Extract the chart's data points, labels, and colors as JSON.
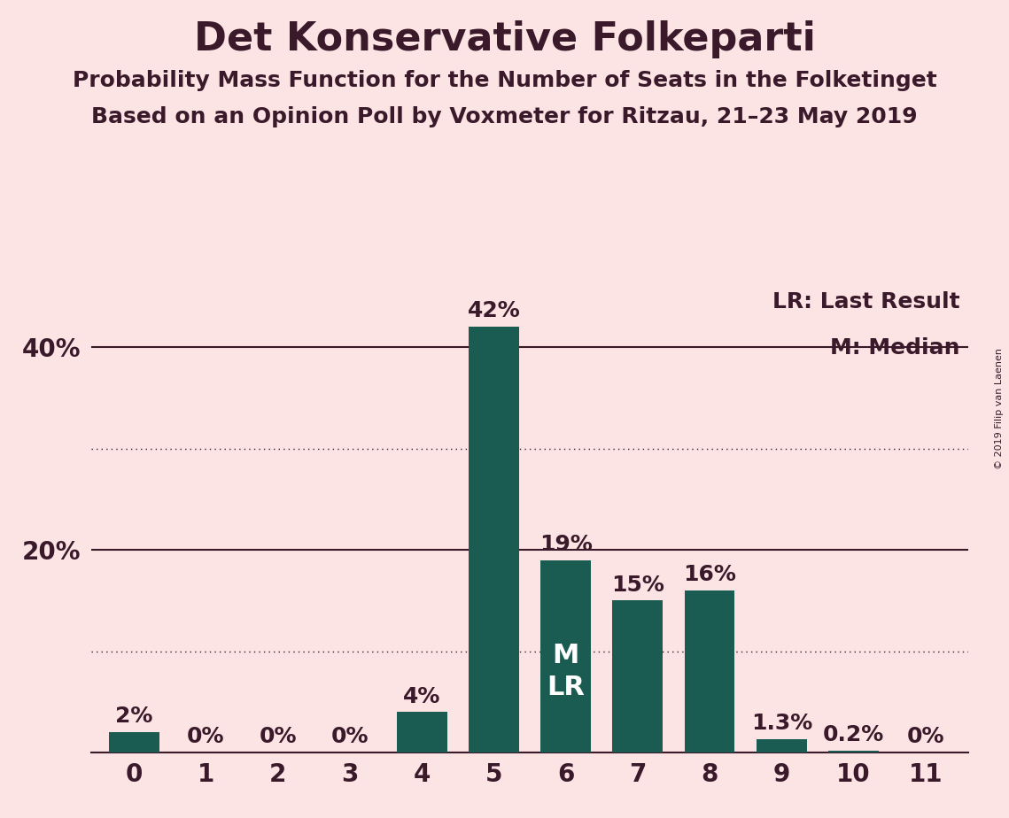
{
  "title": "Det Konservative Folkeparti",
  "subtitle1": "Probability Mass Function for the Number of Seats in the Folketinget",
  "subtitle2": "Based on an Opinion Poll by Voxmeter for Ritzau, 21–23 May 2019",
  "copyright": "© 2019 Filip van Laenen",
  "categories": [
    0,
    1,
    2,
    3,
    4,
    5,
    6,
    7,
    8,
    9,
    10,
    11
  ],
  "values": [
    2,
    0,
    0,
    0,
    4,
    42,
    19,
    15,
    16,
    1.3,
    0.2,
    0
  ],
  "bar_color": "#1a5c52",
  "background_color": "#fce4e4",
  "text_color": "#3a1a2a",
  "bar_label_color_dark": "#3a1a2a",
  "bar_label_color_light": "#ffffff",
  "legend_text": [
    "LR: Last Result",
    "M: Median"
  ],
  "median_seat": 6,
  "ylim": [
    0,
    46
  ],
  "ytick_positions": [
    20,
    40
  ],
  "ytick_labels": [
    "20%",
    "40%"
  ],
  "solid_grid": [
    20,
    40
  ],
  "dotted_grid": [
    10,
    30
  ],
  "title_fontsize": 32,
  "subtitle_fontsize": 18,
  "axis_label_fontsize": 20,
  "bar_label_fontsize": 18,
  "legend_fontsize": 18,
  "bar_width": 0.7
}
